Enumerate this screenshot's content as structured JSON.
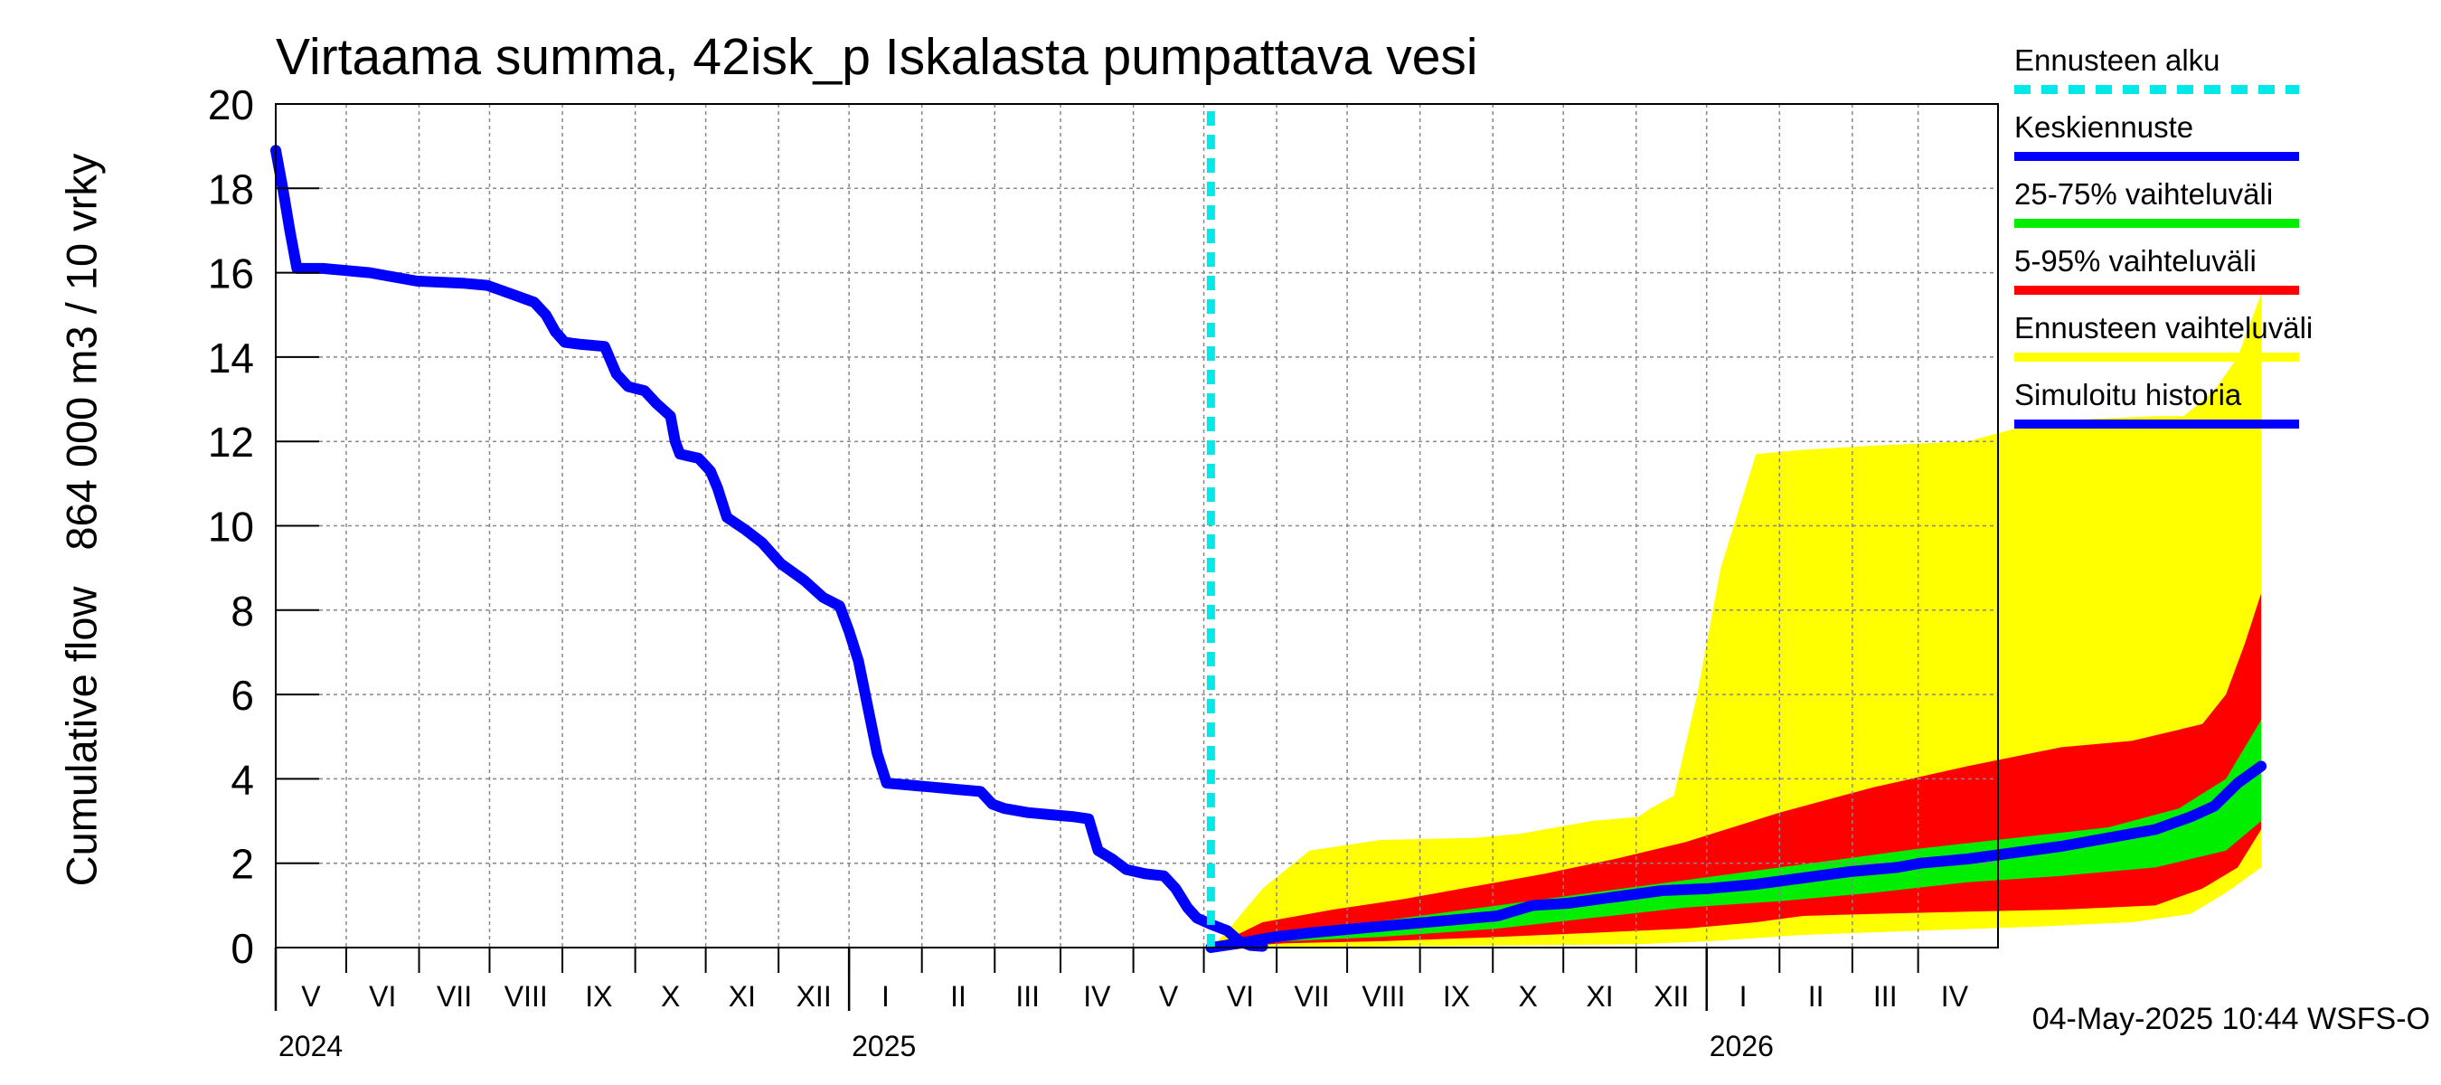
{
  "chart_data": {
    "type": "area",
    "title": "Virtaama summa, 42isk_p Iskalasta pumpattava vesi",
    "ylabel": "Cumulative flow",
    "ylabel_unit": "864 000 m3 / 10 vrky",
    "ylim": [
      0,
      20
    ],
    "yticks": [
      "0",
      "2",
      "4",
      "6",
      "8",
      "10",
      "12",
      "14",
      "16",
      "18",
      "20"
    ],
    "x_domain_days": [
      0,
      733
    ],
    "x_unit": "days since 2024-04-01",
    "forecast_start_day": 398,
    "month_labels": [
      {
        "label": "V",
        "start": 0,
        "end": 30
      },
      {
        "label": "VI",
        "start": 30,
        "end": 61
      },
      {
        "label": "VII",
        "start": 61,
        "end": 91
      },
      {
        "label": "VIII",
        "start": 91,
        "end": 122
      },
      {
        "label": "IX",
        "start": 122,
        "end": 153
      },
      {
        "label": "X",
        "start": 153,
        "end": 183
      },
      {
        "label": "XI",
        "start": 183,
        "end": 214
      },
      {
        "label": "XII",
        "start": 214,
        "end": 244
      },
      {
        "label": "I",
        "start": 244,
        "end": 275
      },
      {
        "label": "II",
        "start": 275,
        "end": 306
      },
      {
        "label": "III",
        "start": 306,
        "end": 334
      },
      {
        "label": "IV",
        "start": 334,
        "end": 365
      },
      {
        "label": "V",
        "start": 365,
        "end": 395
      },
      {
        "label": "VI",
        "start": 395,
        "end": 426
      },
      {
        "label": "VII",
        "start": 426,
        "end": 456
      },
      {
        "label": "VIII",
        "start": 456,
        "end": 487
      },
      {
        "label": "IX",
        "start": 487,
        "end": 518
      },
      {
        "label": "X",
        "start": 518,
        "end": 548
      },
      {
        "label": "XI",
        "start": 548,
        "end": 579
      },
      {
        "label": "XII",
        "start": 579,
        "end": 609
      },
      {
        "label": "I",
        "start": 609,
        "end": 640
      },
      {
        "label": "II",
        "start": 640,
        "end": 671
      },
      {
        "label": "III",
        "start": 671,
        "end": 699
      },
      {
        "label": "IV",
        "start": 699,
        "end": 730
      }
    ],
    "year_labels": [
      {
        "label": "2024",
        "day": 0
      },
      {
        "label": "2025",
        "day": 244
      },
      {
        "label": "2026",
        "day": 609
      }
    ],
    "year_ticks": [
      244,
      609
    ],
    "series": [
      {
        "name": "Ennusteen vaihteluväli",
        "color": "#ffff00",
        "upper": [
          [
            398,
            0
          ],
          [
            405,
            0.4
          ],
          [
            420,
            1.4
          ],
          [
            440,
            2.3
          ],
          [
            470,
            2.55
          ],
          [
            510,
            2.6
          ],
          [
            530,
            2.7
          ],
          [
            560,
            3.0
          ],
          [
            580,
            3.1
          ],
          [
            585,
            3.3
          ],
          [
            595,
            3.6
          ],
          [
            605,
            6.0
          ],
          [
            615,
            9.0
          ],
          [
            630,
            11.7
          ],
          [
            650,
            11.8
          ],
          [
            680,
            11.9
          ],
          [
            720,
            12.0
          ],
          [
            740,
            12.3
          ],
          [
            760,
            12.5
          ],
          [
            800,
            12.6
          ],
          [
            812,
            12.6
          ],
          [
            825,
            13.2
          ],
          [
            835,
            14.0
          ],
          [
            845,
            15.5
          ]
        ],
        "lower": [
          [
            398,
            0
          ],
          [
            450,
            0.02
          ],
          [
            520,
            0.05
          ],
          [
            580,
            0.08
          ],
          [
            610,
            0.15
          ],
          [
            650,
            0.3
          ],
          [
            700,
            0.4
          ],
          [
            750,
            0.5
          ],
          [
            790,
            0.6
          ],
          [
            815,
            0.8
          ],
          [
            830,
            1.3
          ],
          [
            845,
            1.9
          ]
        ]
      },
      {
        "name": "5-95% vaihteluväli",
        "color": "#ff0000",
        "upper": [
          [
            398,
            0
          ],
          [
            420,
            0.6
          ],
          [
            450,
            0.9
          ],
          [
            480,
            1.15
          ],
          [
            510,
            1.45
          ],
          [
            540,
            1.75
          ],
          [
            570,
            2.1
          ],
          [
            600,
            2.5
          ],
          [
            640,
            3.2
          ],
          [
            680,
            3.8
          ],
          [
            720,
            4.3
          ],
          [
            760,
            4.75
          ],
          [
            790,
            4.9
          ],
          [
            820,
            5.3
          ],
          [
            830,
            6.0
          ],
          [
            838,
            7.2
          ],
          [
            845,
            8.4
          ]
        ],
        "lower": [
          [
            398,
            0
          ],
          [
            430,
            0.1
          ],
          [
            470,
            0.15
          ],
          [
            520,
            0.25
          ],
          [
            560,
            0.35
          ],
          [
            600,
            0.45
          ],
          [
            630,
            0.6
          ],
          [
            650,
            0.75
          ],
          [
            680,
            0.8
          ],
          [
            720,
            0.85
          ],
          [
            760,
            0.9
          ],
          [
            800,
            1.0
          ],
          [
            820,
            1.4
          ],
          [
            835,
            1.9
          ],
          [
            845,
            2.8
          ]
        ]
      },
      {
        "name": "25-75% vaihteluväli",
        "color": "#00ee00",
        "upper": [
          [
            398,
            0
          ],
          [
            430,
            0.3
          ],
          [
            460,
            0.55
          ],
          [
            500,
            0.85
          ],
          [
            540,
            1.15
          ],
          [
            580,
            1.45
          ],
          [
            620,
            1.75
          ],
          [
            660,
            2.05
          ],
          [
            700,
            2.35
          ],
          [
            740,
            2.6
          ],
          [
            780,
            2.85
          ],
          [
            810,
            3.3
          ],
          [
            830,
            4.0
          ],
          [
            845,
            5.4
          ]
        ],
        "lower": [
          [
            398,
            0
          ],
          [
            430,
            0.15
          ],
          [
            470,
            0.25
          ],
          [
            520,
            0.45
          ],
          [
            560,
            0.7
          ],
          [
            600,
            0.95
          ],
          [
            640,
            1.1
          ],
          [
            680,
            1.3
          ],
          [
            720,
            1.55
          ],
          [
            760,
            1.7
          ],
          [
            800,
            1.9
          ],
          [
            830,
            2.3
          ],
          [
            845,
            3.0
          ]
        ]
      },
      {
        "name": "Keskiennuste",
        "color": "#0000ff",
        "points": [
          [
            398,
            0
          ],
          [
            410,
            0.1
          ],
          [
            425,
            0.25
          ],
          [
            440,
            0.35
          ],
          [
            460,
            0.45
          ],
          [
            480,
            0.55
          ],
          [
            500,
            0.65
          ],
          [
            520,
            0.75
          ],
          [
            535,
            1.0
          ],
          [
            550,
            1.05
          ],
          [
            570,
            1.2
          ],
          [
            590,
            1.35
          ],
          [
            610,
            1.4
          ],
          [
            630,
            1.5
          ],
          [
            650,
            1.65
          ],
          [
            670,
            1.8
          ],
          [
            690,
            1.9
          ],
          [
            700,
            2.0
          ],
          [
            720,
            2.1
          ],
          [
            740,
            2.25
          ],
          [
            760,
            2.4
          ],
          [
            780,
            2.6
          ],
          [
            800,
            2.8
          ],
          [
            815,
            3.1
          ],
          [
            825,
            3.35
          ],
          [
            835,
            3.9
          ],
          [
            845,
            4.3
          ]
        ]
      },
      {
        "name": "Simuloitu historia",
        "color": "#0000ff",
        "points": [
          [
            0,
            18.9
          ],
          [
            3,
            18.0
          ],
          [
            6,
            17.0
          ],
          [
            9,
            16.1
          ],
          [
            20,
            16.1
          ],
          [
            40,
            16.0
          ],
          [
            60,
            15.8
          ],
          [
            80,
            15.75
          ],
          [
            90,
            15.7
          ],
          [
            100,
            15.5
          ],
          [
            110,
            15.3
          ],
          [
            115,
            15.0
          ],
          [
            119,
            14.6
          ],
          [
            123,
            14.35
          ],
          [
            130,
            14.3
          ],
          [
            140,
            14.25
          ],
          [
            145,
            13.6
          ],
          [
            150,
            13.3
          ],
          [
            157,
            13.2
          ],
          [
            162,
            12.9
          ],
          [
            168,
            12.6
          ],
          [
            170,
            12.0
          ],
          [
            172,
            11.7
          ],
          [
            180,
            11.6
          ],
          [
            185,
            11.3
          ],
          [
            188,
            10.9
          ],
          [
            192,
            10.2
          ],
          [
            200,
            9.9
          ],
          [
            207,
            9.6
          ],
          [
            215,
            9.1
          ],
          [
            225,
            8.7
          ],
          [
            233,
            8.3
          ],
          [
            240,
            8.1
          ],
          [
            244,
            7.5
          ],
          [
            248,
            6.8
          ],
          [
            252,
            5.7
          ],
          [
            256,
            4.6
          ],
          [
            260,
            3.9
          ],
          [
            270,
            3.85
          ],
          [
            280,
            3.8
          ],
          [
            290,
            3.75
          ],
          [
            300,
            3.7
          ],
          [
            305,
            3.4
          ],
          [
            310,
            3.3
          ],
          [
            320,
            3.2
          ],
          [
            330,
            3.15
          ],
          [
            340,
            3.1
          ],
          [
            346,
            3.05
          ],
          [
            350,
            2.3
          ],
          [
            356,
            2.1
          ],
          [
            362,
            1.85
          ],
          [
            370,
            1.75
          ],
          [
            378,
            1.7
          ],
          [
            383,
            1.4
          ],
          [
            388,
            0.95
          ],
          [
            392,
            0.7
          ],
          [
            398,
            0.55
          ],
          [
            405,
            0.4
          ],
          [
            410,
            0.15
          ],
          [
            415,
            0.05
          ],
          [
            420,
            0.03
          ]
        ]
      }
    ]
  },
  "legend": {
    "items": [
      {
        "label": "Ennusteen alku",
        "color": "#00e8e8",
        "style": "dashed"
      },
      {
        "label": "Keskiennuste",
        "color": "#0000ff",
        "style": "solid"
      },
      {
        "label": "25-75% vaihteluväli",
        "color": "#00ee00",
        "style": "solid"
      },
      {
        "label": "5-95% vaihteluväli",
        "color": "#ff0000",
        "style": "solid"
      },
      {
        "label": "Ennusteen vaihteluväli",
        "color": "#ffff00",
        "style": "solid"
      },
      {
        "label": "Simuloitu historia",
        "color": "#0000ff",
        "style": "solid"
      }
    ]
  },
  "footer": {
    "timestamp": "04-May-2025 10:44 WSFS-O"
  }
}
